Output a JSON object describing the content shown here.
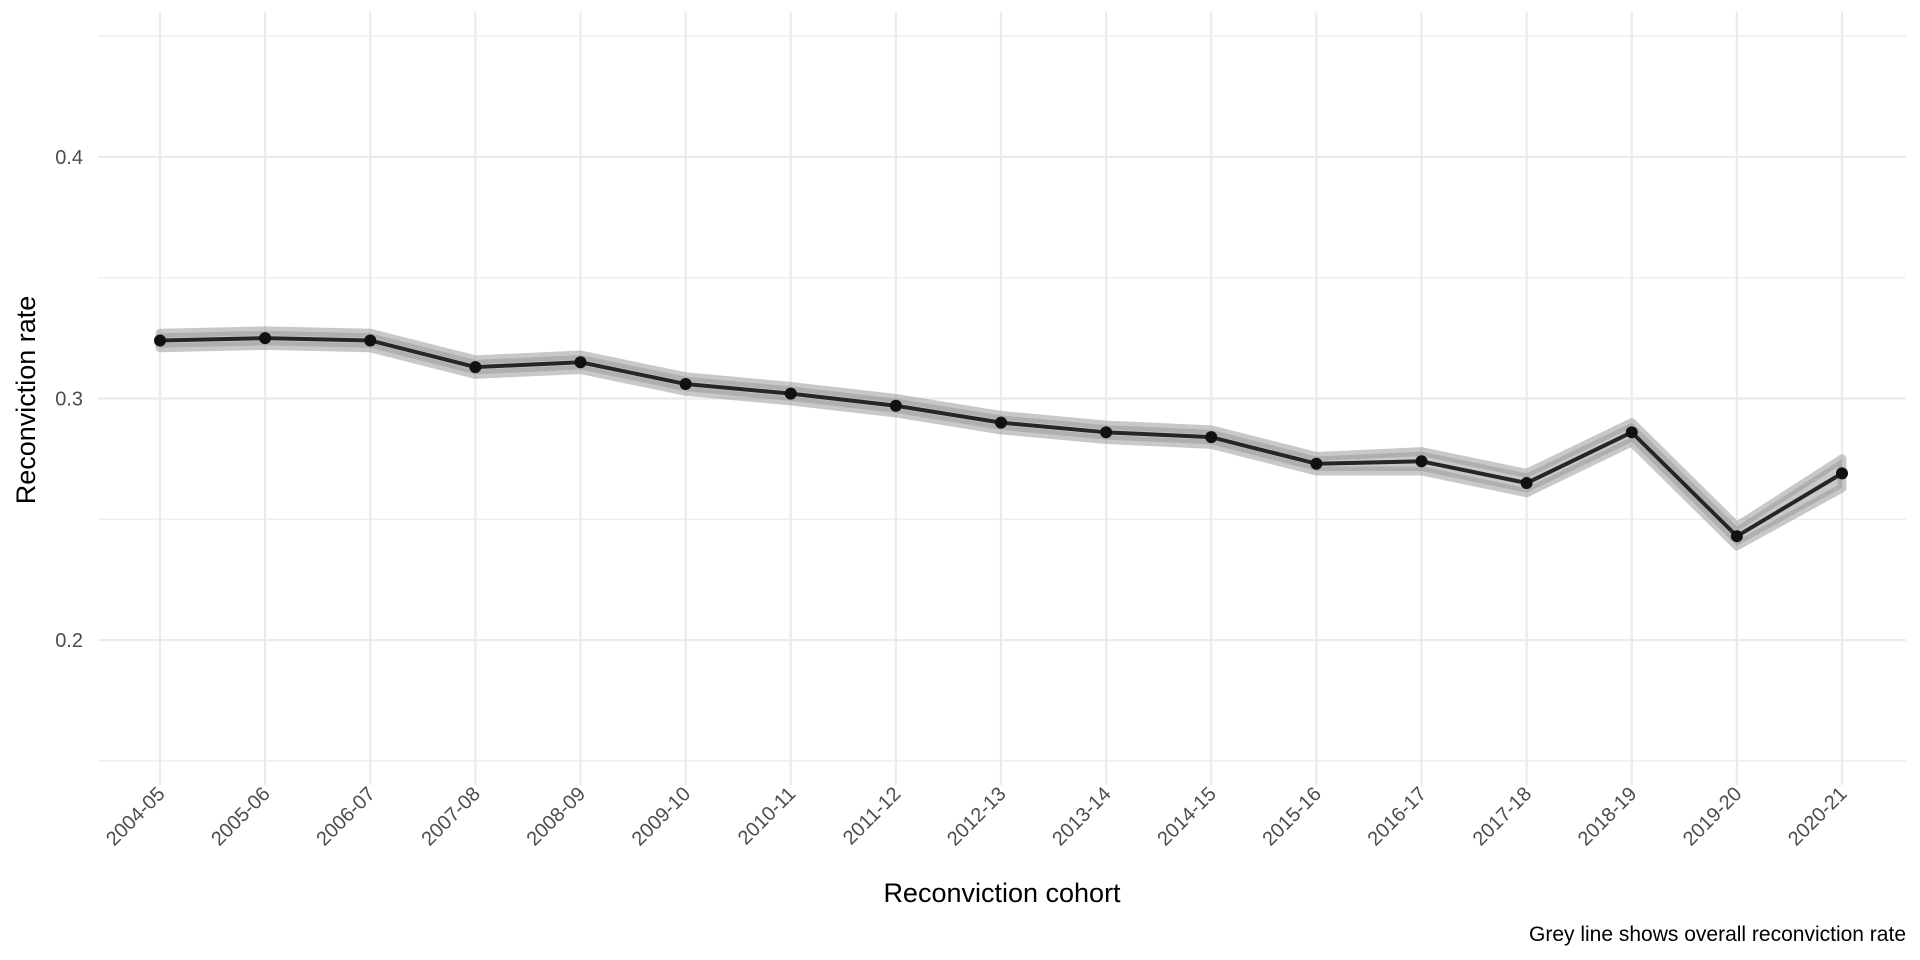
{
  "chart_data": {
    "type": "line",
    "title": "",
    "xlabel": "Reconviction cohort",
    "ylabel": "Reconviction rate",
    "caption": "Grey line shows overall reconviction rate",
    "categories": [
      "2004-05",
      "2005-06",
      "2006-07",
      "2007-08",
      "2008-09",
      "2009-10",
      "2010-11",
      "2011-12",
      "2012-13",
      "2013-14",
      "2014-15",
      "2015-16",
      "2016-17",
      "2017-18",
      "2018-19",
      "2019-20",
      "2020-21"
    ],
    "series": [
      {
        "values": [
          0.324,
          0.325,
          0.324,
          0.313,
          0.315,
          0.306,
          0.302,
          0.297,
          0.29,
          0.286,
          0.284,
          0.273,
          0.274,
          0.265,
          0.286,
          0.243,
          0.269
        ],
        "lower": [
          0.321,
          0.322,
          0.321,
          0.31,
          0.312,
          0.303,
          0.299,
          0.294,
          0.287,
          0.283,
          0.281,
          0.27,
          0.27,
          0.261,
          0.282,
          0.239,
          0.263
        ],
        "upper": [
          0.327,
          0.328,
          0.327,
          0.316,
          0.318,
          0.309,
          0.305,
          0.3,
          0.293,
          0.289,
          0.287,
          0.276,
          0.278,
          0.269,
          0.29,
          0.247,
          0.275
        ]
      }
    ],
    "yticks": [
      0.2,
      0.3,
      0.4
    ],
    "ytick_labels": [
      "0.2",
      "0.3",
      "0.4"
    ],
    "ylim": [
      0.14,
      0.46
    ],
    "grid": true,
    "colors": {
      "line": "#262626",
      "band": "#9a9a9a",
      "points": "#111111",
      "grid": "#ebebeb"
    }
  }
}
